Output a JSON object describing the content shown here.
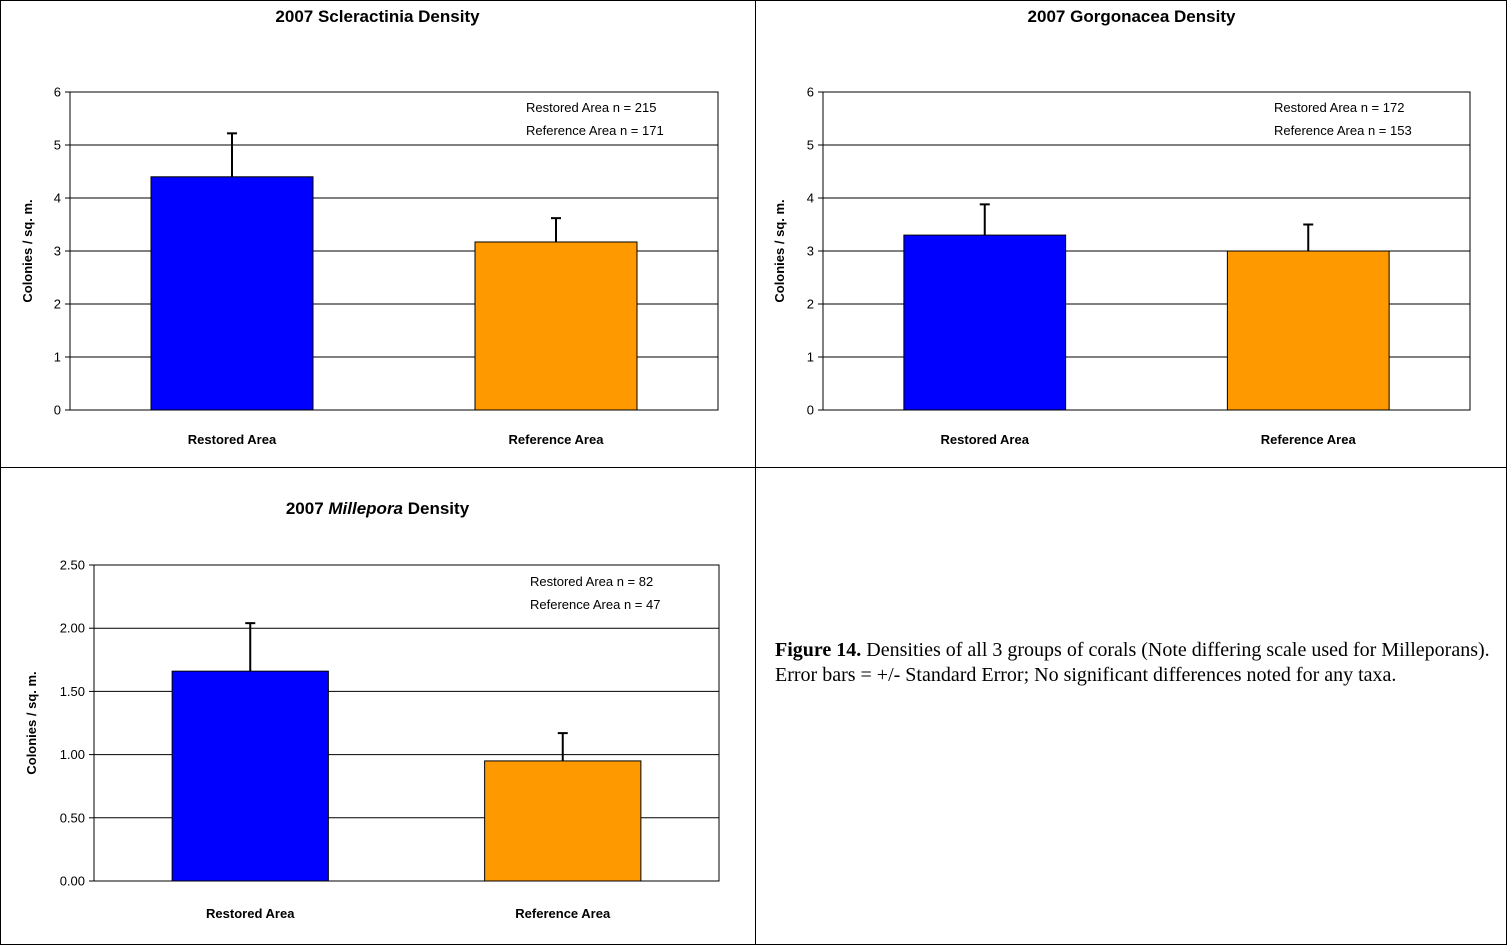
{
  "chart_data": [
    {
      "type": "bar",
      "title_prefix": "2007 ",
      "title_main": "Scleractinia",
      "title_suffix": " Density",
      "title_italic": false,
      "ylabel": "Colonies / sq. m.",
      "categories": [
        "Restored Area",
        "Reference Area"
      ],
      "values": [
        4.4,
        3.17
      ],
      "errors": [
        0.82,
        0.45
      ],
      "colors": [
        "#0000ff",
        "#ff9900"
      ],
      "ylim": [
        0,
        6
      ],
      "yticks": [
        "0",
        "1",
        "2",
        "3",
        "4",
        "5",
        "6"
      ],
      "grid": true,
      "legend_placement": "top-right",
      "annotations": [
        "Restored Area n = 215",
        "Reference Area n = 171"
      ]
    },
    {
      "type": "bar",
      "title_prefix": "2007 ",
      "title_main": "Gorgonacea",
      "title_suffix": " Density",
      "title_italic": false,
      "ylabel": "Colonies / sq. m.",
      "categories": [
        "Restored Area",
        "Reference Area"
      ],
      "values": [
        3.3,
        3.0
      ],
      "errors": [
        0.58,
        0.5
      ],
      "colors": [
        "#0000ff",
        "#ff9900"
      ],
      "ylim": [
        0,
        6
      ],
      "yticks": [
        "0",
        "1",
        "2",
        "3",
        "4",
        "5",
        "6"
      ],
      "grid": true,
      "legend_placement": "top-right",
      "annotations": [
        "Restored Area n = 172",
        "Reference Area n = 153"
      ]
    },
    {
      "type": "bar",
      "title_prefix": "2007 ",
      "title_main": "Millepora",
      "title_suffix": " Density",
      "title_italic": true,
      "ylabel": "Colonies / sq. m.",
      "categories": [
        "Restored Area",
        "Reference Area"
      ],
      "values": [
        1.66,
        0.95
      ],
      "errors": [
        0.38,
        0.22
      ],
      "colors": [
        "#0000ff",
        "#ff9900"
      ],
      "ylim": [
        0,
        2.5
      ],
      "yticks": [
        "0.00",
        "0.50",
        "1.00",
        "1.50",
        "2.00",
        "2.50"
      ],
      "grid": true,
      "legend_placement": "top-right",
      "annotations": [
        "Restored Area n = 82",
        "Reference Area n = 47"
      ]
    }
  ],
  "caption": {
    "label": "Figure 14.",
    "text": "  Densities of all 3 groups of corals (Note differing scale used for Milleporans).  Error bars = +/- Standard Error; No significant differences noted for any taxa."
  }
}
